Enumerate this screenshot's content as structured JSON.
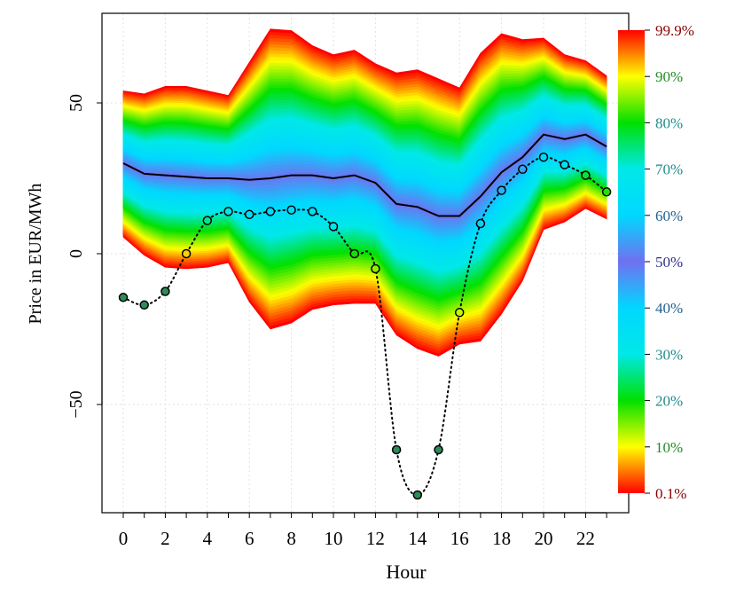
{
  "chart_data": {
    "type": "area",
    "title": "",
    "xlabel": "Hour",
    "ylabel": "Price in EUR/MWh",
    "xlim": [
      -1,
      23.5
    ],
    "ylim": [
      -84,
      80
    ],
    "x_ticks": [
      0,
      2,
      4,
      6,
      8,
      10,
      12,
      14,
      16,
      18,
      20,
      22
    ],
    "y_ticks": [
      -50,
      0,
      50
    ],
    "grid": true,
    "x": [
      0,
      1,
      2,
      3,
      4,
      5,
      6,
      7,
      8,
      9,
      10,
      11,
      12,
      13,
      14,
      15,
      16,
      17,
      18,
      19,
      20,
      21,
      22,
      23
    ],
    "quantile_band": {
      "name": "",
      "upper_99_9": [
        54,
        53,
        55.5,
        55.5,
        54,
        52.5,
        63.5,
        74.5,
        74,
        69,
        66,
        67.5,
        63,
        60,
        61,
        58,
        55,
        66.5,
        73,
        71,
        71.5,
        66,
        64,
        59
      ],
      "lower_0_1": [
        5.5,
        -0.5,
        -4.5,
        -5,
        -4.5,
        -3,
        -16,
        -25,
        -23,
        -18.5,
        -17,
        -16.5,
        -16.5,
        -27,
        -31.5,
        -34,
        -30,
        -29,
        -20,
        -9,
        8,
        10.5,
        15,
        11.5
      ]
    },
    "series": [
      {
        "name": "",
        "style": "solid-line",
        "color": "#000000",
        "values": [
          30,
          26.5,
          26,
          25.5,
          25,
          25,
          24.5,
          25,
          26,
          26,
          25,
          26,
          23.5,
          16.5,
          15.5,
          12.5,
          12.5,
          19,
          27,
          32,
          39.5,
          38,
          39.5,
          35.5
        ]
      },
      {
        "name": "",
        "style": "dotted-line-with-points",
        "color": "#000000",
        "values": [
          -14.5,
          -17,
          -12.5,
          0,
          11,
          14,
          13,
          14,
          14.5,
          14,
          9,
          0,
          -5,
          -65,
          -80,
          -65,
          -19.5,
          10,
          21,
          28,
          32,
          29.5,
          26,
          20.5
        ]
      }
    ],
    "colorbar": {
      "labels": [
        "99.9%",
        "90%",
        "80%",
        "70%",
        "60%",
        "50%",
        "40%",
        "30%",
        "20%",
        "10%",
        "0.1%"
      ],
      "label_colors": [
        "#8B0000",
        "#228B22",
        "#1F8A8A",
        "#1F8A8A",
        "#1F5F8F",
        "#2E2E8A",
        "#1F5F8F",
        "#1F8A8A",
        "#1F8A8A",
        "#228B22",
        "#8B0000"
      ]
    }
  }
}
